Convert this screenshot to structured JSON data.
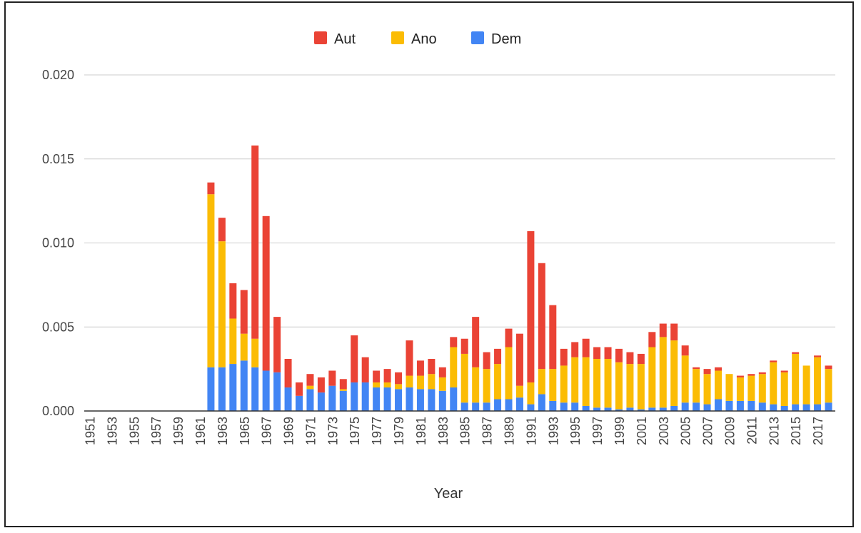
{
  "chart_data": {
    "type": "bar",
    "stacked": true,
    "xlabel": "Year",
    "ylabel": "",
    "ylim": [
      0,
      0.02
    ],
    "yticks": [
      "0.000",
      "0.005",
      "0.010",
      "0.015",
      "0.020"
    ],
    "grid": true,
    "legend_position": "top",
    "categories": [
      "1951",
      "1952",
      "1953",
      "1954",
      "1955",
      "1956",
      "1957",
      "1958",
      "1959",
      "1960",
      "1961",
      "1962",
      "1963",
      "1964",
      "1965",
      "1966",
      "1967",
      "1968",
      "1969",
      "1970",
      "1971",
      "1972",
      "1973",
      "1974",
      "1975",
      "1976",
      "1977",
      "1978",
      "1979",
      "1980",
      "1981",
      "1982",
      "1983",
      "1984",
      "1985",
      "1986",
      "1987",
      "1988",
      "1989",
      "1990",
      "1991",
      "1992",
      "1993",
      "1994",
      "1995",
      "1996",
      "1997",
      "1998",
      "1999",
      "2000",
      "2001",
      "2002",
      "2003",
      "2004",
      "2005",
      "2006",
      "2007",
      "2008",
      "2009",
      "2010",
      "2011",
      "2012",
      "2013",
      "2014",
      "2015",
      "2016",
      "2017",
      "2018"
    ],
    "xtick_labels": [
      "1951",
      "1953",
      "1955",
      "1957",
      "1959",
      "1961",
      "1963",
      "1965",
      "1967",
      "1969",
      "1971",
      "1973",
      "1975",
      "1977",
      "1979",
      "1981",
      "1983",
      "1985",
      "1987",
      "1989",
      "1991",
      "1993",
      "1995",
      "1997",
      "1999",
      "2001",
      "2003",
      "2005",
      "2007",
      "2009",
      "2011",
      "2013",
      "2015",
      "2017"
    ],
    "series": [
      {
        "name": "Dem",
        "color": "#4285F4",
        "values": [
          0,
          0,
          0,
          0,
          0,
          0,
          0,
          0,
          0,
          0,
          0,
          0.0026,
          0.0026,
          0.0028,
          0.003,
          0.0026,
          0.0024,
          0.0023,
          0.0014,
          0.0009,
          0.0013,
          0.0011,
          0.0015,
          0.0012,
          0.0017,
          0.0017,
          0.0014,
          0.0014,
          0.0013,
          0.0014,
          0.0013,
          0.0013,
          0.0012,
          0.0014,
          0.0005,
          0.0005,
          0.0005,
          0.0007,
          0.0007,
          0.0008,
          0.0004,
          0.001,
          0.0006,
          0.0005,
          0.0005,
          0.0003,
          0.0002,
          0.0002,
          0.0001,
          0.0002,
          0.0001,
          0.0002,
          0.0002,
          0.0003,
          0.0005,
          0.0005,
          0.0004,
          0.0007,
          0.0006,
          0.0006,
          0.0006,
          0.0005,
          0.0004,
          0.0003,
          0.0004,
          0.0004,
          0.0004,
          0.0005
        ]
      },
      {
        "name": "Ano",
        "color": "#FBBC04",
        "values": [
          0,
          0,
          0,
          0,
          0,
          0,
          0,
          0,
          0,
          0,
          0,
          0.0103,
          0.0075,
          0.0027,
          0.0016,
          0.0017,
          0,
          0,
          0,
          0,
          0.0002,
          0,
          0,
          0.0001,
          0,
          0,
          0.0003,
          0.0003,
          0.0003,
          0.0007,
          0.0008,
          0.0009,
          0.0008,
          0.0024,
          0.0029,
          0.0021,
          0.002,
          0.0021,
          0.0031,
          0.0007,
          0.0013,
          0.0015,
          0.0019,
          0.0022,
          0.0027,
          0.0029,
          0.0029,
          0.0029,
          0.0028,
          0.0026,
          0.0027,
          0.0036,
          0.0042,
          0.0039,
          0.0028,
          0.002,
          0.0018,
          0.0017,
          0.0016,
          0.0014,
          0.0015,
          0.0017,
          0.0025,
          0.002,
          0.003,
          0.0023,
          0.0028,
          0.002
        ]
      },
      {
        "name": "Aut",
        "color": "#EA4335",
        "values": [
          0,
          0,
          0,
          0,
          0,
          0,
          0,
          0,
          0,
          0,
          0,
          0.0007,
          0.0014,
          0.0021,
          0.0026,
          0.0115,
          0.0092,
          0.0033,
          0.0017,
          0.0008,
          0.0007,
          0.0009,
          0.0009,
          0.0006,
          0.0028,
          0.0015,
          0.0007,
          0.0008,
          0.0007,
          0.0021,
          0.0009,
          0.0009,
          0.0006,
          0.0006,
          0.0009,
          0.003,
          0.001,
          0.0009,
          0.0011,
          0.0031,
          0.009,
          0.0063,
          0.0038,
          0.001,
          0.0009,
          0.0011,
          0.0007,
          0.0007,
          0.0008,
          0.0007,
          0.0006,
          0.0009,
          0.0008,
          0.001,
          0.0006,
          0.0001,
          0.0003,
          0.0002,
          0,
          0.0001,
          0.0001,
          0.0001,
          0.0001,
          0.0001,
          0.0001,
          0,
          0.0001,
          0.0002
        ]
      }
    ],
    "legend_order": [
      "Aut",
      "Ano",
      "Dem"
    ]
  }
}
